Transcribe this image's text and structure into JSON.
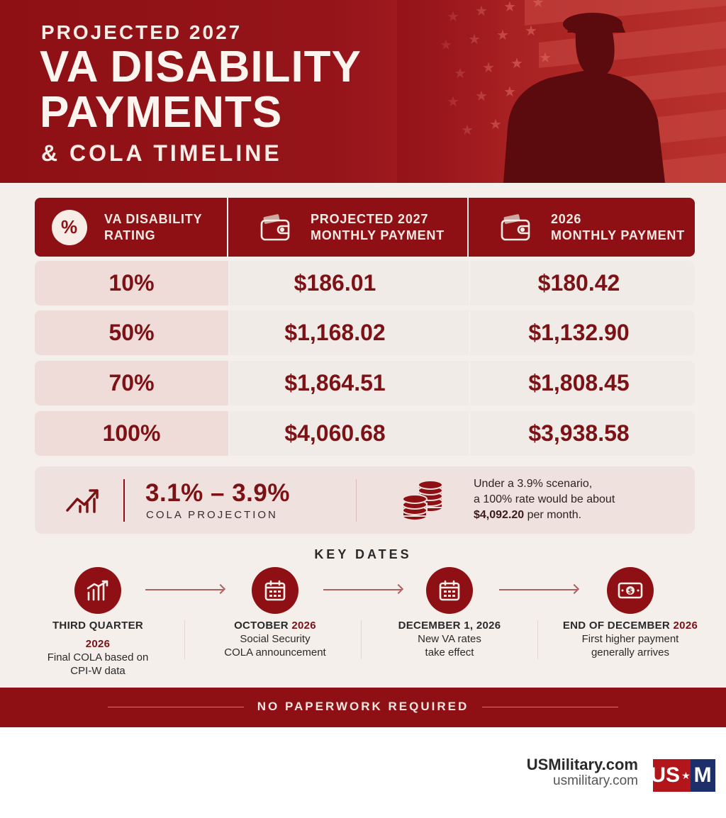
{
  "header": {
    "eyebrow": "PROJECTED 2027",
    "title_line1": "VA DISABILITY",
    "title_line2": "PAYMENTS",
    "subtitle": "& COLA TIMELINE"
  },
  "table": {
    "headers": {
      "rating_line1": "VA DISABILITY",
      "rating_line2": "RATING",
      "projected_line1": "PROJECTED 2027",
      "projected_line2": "MONTHLY PAYMENT",
      "current_line1": "2026",
      "current_line2": "MONTHLY PAYMENT",
      "percent_icon_glyph": "%"
    },
    "rows": [
      {
        "rating": "10%",
        "projected_2027": "$186.01",
        "monthly_2026": "$180.42"
      },
      {
        "rating": "50%",
        "projected_2027": "$1,168.02",
        "monthly_2026": "$1,132.90"
      },
      {
        "rating": "70%",
        "projected_2027": "$1,864.51",
        "monthly_2026": "$1,808.45"
      },
      {
        "rating": "100%",
        "projected_2027": "$4,060.68",
        "monthly_2026": "$3,938.58"
      }
    ]
  },
  "cola": {
    "range": "3.1% – 3.9%",
    "label": "COLA PROJECTION",
    "note_line1": "Under a 3.9% scenario,",
    "note_line2": "a 100% rate would be about",
    "note_amount": "$4,092.20",
    "note_suffix": " per month."
  },
  "key_dates": {
    "title": "KEY DATES",
    "steps": [
      {
        "icon": "bar-chart-icon",
        "head": "THIRD QUARTER",
        "year": "2026",
        "desc_line1": "Final COLA based on",
        "desc_line2": "CPI-W data"
      },
      {
        "icon": "calendar-icon",
        "head": "OCTOBER ",
        "year": "2026",
        "desc_line1": "Social Security",
        "desc_line2": "COLA announcement"
      },
      {
        "icon": "calendar-icon",
        "head": "DECEMBER 1, 2026",
        "year": "",
        "desc_line1": "New VA rates",
        "desc_line2": "take effect"
      },
      {
        "icon": "money-icon",
        "head": "END OF DECEMBER ",
        "year": "2026",
        "desc_line1": "First higher payment",
        "desc_line2": "generally arrives"
      }
    ]
  },
  "banner": {
    "text": "NO PAPERWORK REQUIRED"
  },
  "footer": {
    "brand_name": "USMilitary.com",
    "brand_url": "usmilitary.com",
    "logo_left": "US",
    "logo_star": "★",
    "logo_right": "M"
  },
  "colors": {
    "brand_red": "#8e1014",
    "accent_dark_red": "#7c1216",
    "panel_bg": "#f4efeb",
    "logo_blue": "#1c2f6b"
  }
}
